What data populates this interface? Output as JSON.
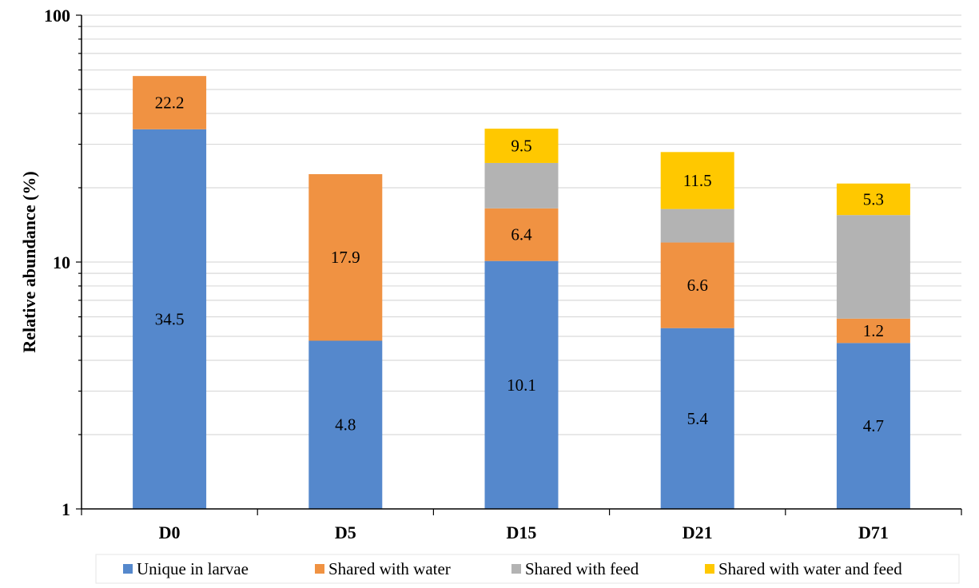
{
  "chart_data": {
    "type": "bar",
    "stacked": true,
    "y_scale": "log",
    "ylim": [
      1,
      100
    ],
    "ylabel": "Relative abundance (%)",
    "xlabel": "",
    "title": "",
    "grid": true,
    "legend_position": "bottom",
    "y_ticks": [
      {
        "value": 1,
        "label": "1"
      },
      {
        "value": 10,
        "label": "10"
      },
      {
        "value": 100,
        "label": "100"
      }
    ],
    "categories": [
      "D0",
      "D5",
      "D15",
      "D21",
      "D71"
    ],
    "series": [
      {
        "name": "Unique in larvae",
        "color": "#5588cc",
        "values": [
          34.5,
          4.8,
          10.1,
          5.4,
          4.7
        ],
        "labels": [
          "34.5",
          "4.8",
          "10.1",
          "5.4",
          "4.7"
        ]
      },
      {
        "name": "Shared with water",
        "color": "#f09242",
        "values": [
          22.2,
          17.9,
          6.4,
          6.6,
          1.2
        ],
        "labels": [
          "22.2",
          "17.9",
          "6.4",
          "6.6",
          "1.2"
        ]
      },
      {
        "name": "Shared with feed",
        "color": "#b3b3b3",
        "values": [
          0,
          0,
          8.7,
          4.4,
          9.6
        ],
        "labels": [
          "",
          "",
          "",
          "",
          ""
        ]
      },
      {
        "name": "Shared with water and feed",
        "color": "#ffc800",
        "values": [
          0,
          0,
          9.5,
          11.5,
          5.3
        ],
        "labels": [
          "",
          "",
          "9.5",
          "11.5",
          "5.3"
        ]
      }
    ]
  }
}
